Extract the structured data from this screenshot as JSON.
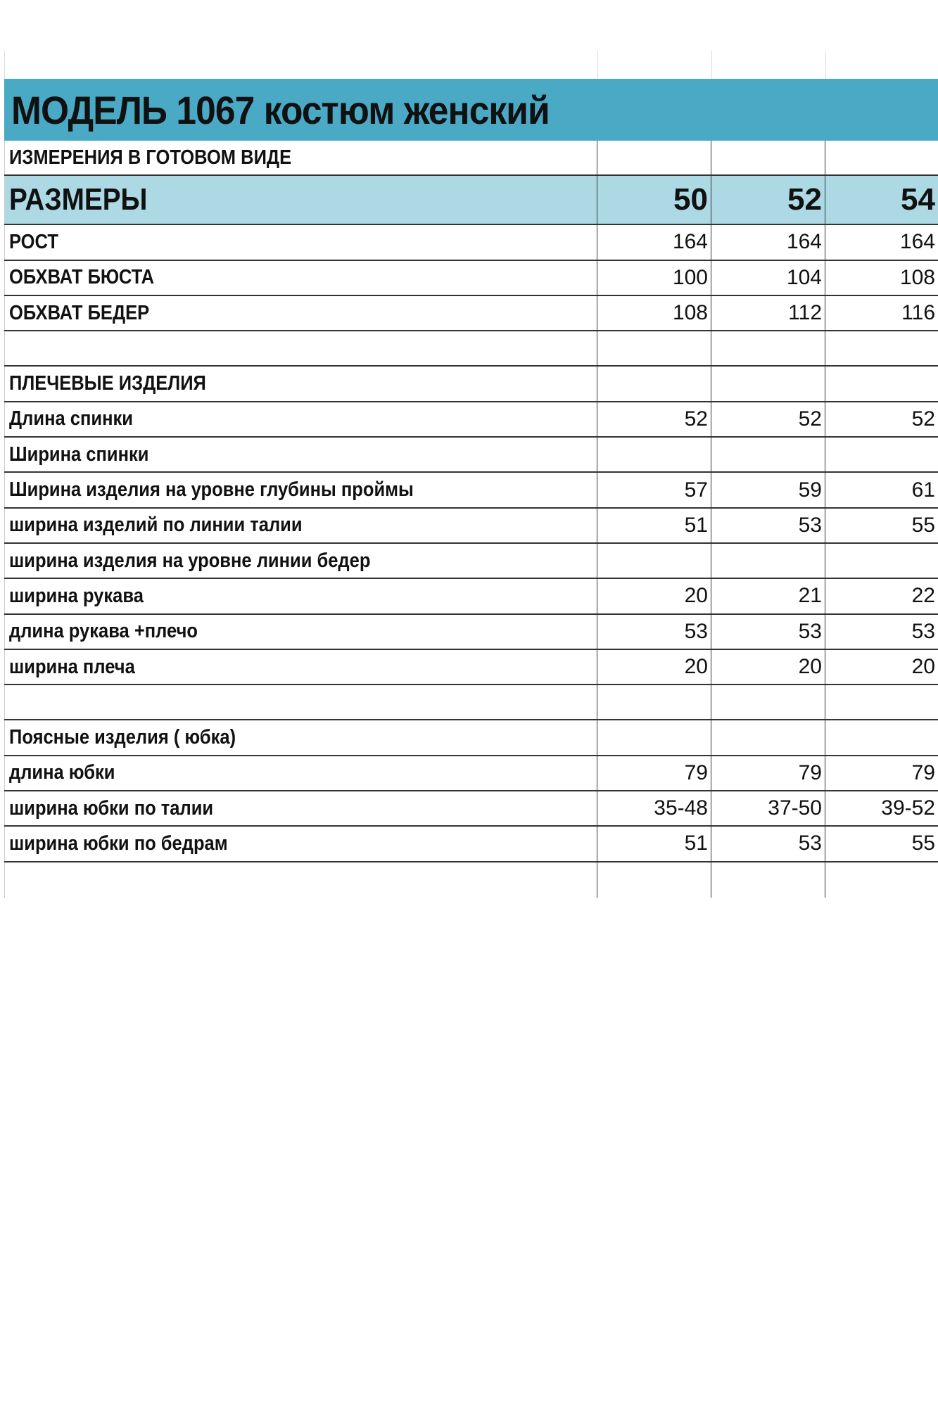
{
  "title": "МОДЕЛЬ 1067 костюм женский",
  "subtitle": "ИЗМЕРЕНИЯ В ГОТОВОМ ВИДЕ",
  "colors": {
    "title_bg": "#4aaac6",
    "sizes_bg": "#acd9e4"
  },
  "sizes_label": "РАЗМЕРЫ",
  "sizes": [
    "50",
    "52",
    "54"
  ],
  "rows": [
    {
      "label": "РОСТ",
      "values": [
        "164",
        "164",
        "164"
      ]
    },
    {
      "label": "ОБХВАТ БЮСТА",
      "values": [
        "100",
        "104",
        "108"
      ]
    },
    {
      "label": "ОБХВАТ БЕДЕР",
      "values": [
        "108",
        "112",
        "116"
      ]
    },
    {
      "label": "",
      "values": [
        "",
        "",
        ""
      ]
    },
    {
      "label": "ПЛЕЧЕВЫЕ ИЗДЕЛИЯ",
      "values": [
        "",
        "",
        ""
      ]
    },
    {
      "label": "Длина спинки",
      "values": [
        "52",
        "52",
        "52"
      ]
    },
    {
      "label": "Ширина спинки",
      "values": [
        "",
        "",
        ""
      ]
    },
    {
      "label": "Ширина изделия на уровне глубины проймы",
      "values": [
        "57",
        "59",
        "61"
      ]
    },
    {
      "label": "ширина изделий по линии талии",
      "values": [
        "51",
        "53",
        "55"
      ]
    },
    {
      "label": "ширина изделия на уровне линии бедер",
      "values": [
        "",
        "",
        ""
      ]
    },
    {
      "label": "ширина рукава",
      "values": [
        "20",
        "21",
        "22"
      ]
    },
    {
      "label": "длина рукава +плечо",
      "values": [
        "53",
        "53",
        "53"
      ]
    },
    {
      "label": "ширина плеча",
      "values": [
        "20",
        "20",
        "20"
      ]
    },
    {
      "label": "",
      "values": [
        "",
        "",
        ""
      ]
    },
    {
      "label": "Поясные изделия ( юбка)",
      "values": [
        "",
        "",
        ""
      ]
    },
    {
      "label": "длина юбки",
      "values": [
        "79",
        "79",
        "79"
      ]
    },
    {
      "label": "ширина юбки по талии",
      "values": [
        "35-48",
        "37-50",
        "39-52"
      ]
    },
    {
      "label": "ширина юбки по бедрам",
      "values": [
        "51",
        "53",
        "55"
      ]
    },
    {
      "label": "",
      "values": [
        "",
        "",
        ""
      ]
    }
  ]
}
